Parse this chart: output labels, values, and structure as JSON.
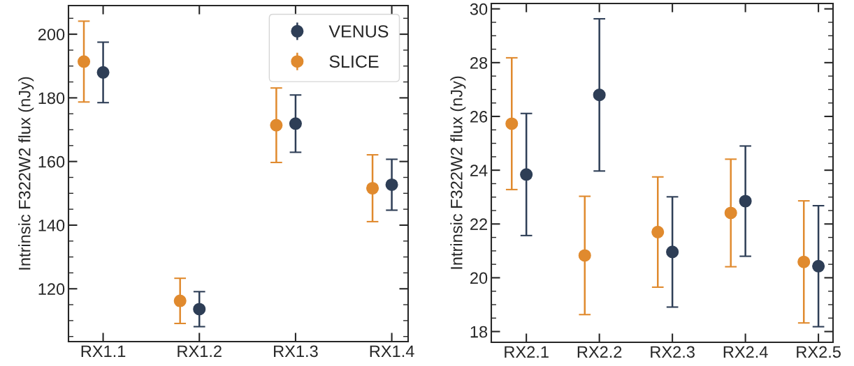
{
  "chart_data": [
    {
      "type": "scatter",
      "categories": [
        "RX1.1",
        "RX1.2",
        "RX1.3",
        "RX1.4"
      ],
      "ylabel": "Intrinsic F322W2 flux (nJy)",
      "ylim": [
        103.4,
        209
      ],
      "yticks": [
        {
          "value": 105,
          "label": null
        },
        {
          "value": 110,
          "label": null
        },
        {
          "value": 115,
          "label": null
        },
        120,
        {
          "value": 125,
          "label": null
        },
        {
          "value": 130,
          "label": null
        },
        {
          "value": 135,
          "label": null
        },
        140,
        {
          "value": 145,
          "label": null
        },
        {
          "value": 150,
          "label": null
        },
        {
          "value": 155,
          "label": null
        },
        160,
        {
          "value": 165,
          "label": null
        },
        {
          "value": 170,
          "label": null
        },
        {
          "value": 175,
          "label": null
        },
        180,
        {
          "value": 185,
          "label": null
        },
        {
          "value": 190,
          "label": null
        },
        {
          "value": 195,
          "label": null
        },
        200,
        {
          "value": 205,
          "label": null
        }
      ],
      "marker": "circle",
      "legend": "top right",
      "grid": false,
      "series": [
        {
          "name": "VENUS",
          "color": "#2e3e56",
          "values": [
            188.0,
            113.6,
            171.9,
            152.7
          ],
          "errors": [
            9.5,
            5.5,
            9.0,
            8.0
          ]
        },
        {
          "name": "SLICE",
          "color": "#e08a2e",
          "values": [
            191.4,
            116.2,
            171.4,
            151.6
          ],
          "errors": [
            12.7,
            7.1,
            11.7,
            10.5
          ]
        }
      ]
    },
    {
      "type": "scatter",
      "categories": [
        "RX2.1",
        "RX2.2",
        "RX2.3",
        "RX2.4",
        "RX2.5"
      ],
      "ylabel": "Intrinsic F322W2 flux (nJy)",
      "ylim": [
        17.6,
        30.2
      ],
      "yticks": [
        18,
        {
          "value": 18.5,
          "label": null
        },
        {
          "value": 19,
          "label": null
        },
        {
          "value": 19.5,
          "label": null
        },
        20,
        {
          "value": 20.5,
          "label": null
        },
        {
          "value": 21,
          "label": null
        },
        {
          "value": 21.5,
          "label": null
        },
        22,
        {
          "value": 22.5,
          "label": null
        },
        {
          "value": 23,
          "label": null
        },
        {
          "value": 23.5,
          "label": null
        },
        24,
        {
          "value": 24.5,
          "label": null
        },
        {
          "value": 25,
          "label": null
        },
        {
          "value": 25.5,
          "label": null
        },
        26,
        {
          "value": 26.5,
          "label": null
        },
        {
          "value": 27,
          "label": null
        },
        {
          "value": 27.5,
          "label": null
        },
        28,
        {
          "value": 28.5,
          "label": null
        },
        {
          "value": 29,
          "label": null
        },
        {
          "value": 29.5,
          "label": null
        },
        30
      ],
      "marker": "circle",
      "legend": false,
      "grid": false,
      "series": [
        {
          "color": "#2e3e56",
          "values": [
            23.84,
            26.8,
            20.96,
            22.85,
            20.43
          ],
          "errors": [
            2.27,
            2.83,
            2.05,
            2.05,
            2.25
          ]
        },
        {
          "color": "#e08a2e",
          "values": [
            25.73,
            20.83,
            21.7,
            22.41,
            20.59
          ],
          "errors": [
            2.45,
            2.2,
            2.05,
            2.0,
            2.27
          ]
        }
      ]
    }
  ]
}
